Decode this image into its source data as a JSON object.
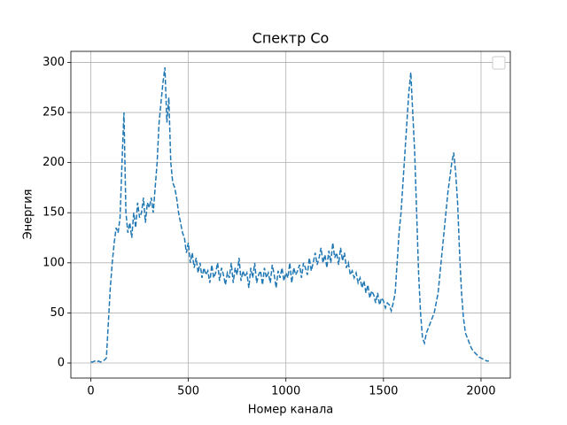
{
  "chart_data": {
    "type": "line",
    "title": "Спектр Co",
    "x_label": "Номер канала",
    "y_label": "Энергия",
    "x": [
      0,
      10,
      20,
      30,
      40,
      50,
      60,
      70,
      80,
      90,
      100,
      110,
      120,
      130,
      140,
      150,
      160,
      170,
      180,
      190,
      200,
      210,
      220,
      230,
      240,
      250,
      260,
      270,
      280,
      290,
      300,
      310,
      320,
      330,
      340,
      350,
      360,
      370,
      380,
      390,
      400,
      410,
      420,
      430,
      440,
      450,
      460,
      470,
      480,
      490,
      500,
      510,
      520,
      530,
      540,
      550,
      560,
      570,
      580,
      590,
      600,
      610,
      620,
      630,
      640,
      650,
      660,
      670,
      680,
      690,
      700,
      710,
      720,
      730,
      740,
      750,
      760,
      770,
      780,
      790,
      800,
      810,
      820,
      830,
      840,
      850,
      860,
      870,
      880,
      890,
      900,
      910,
      920,
      930,
      940,
      950,
      960,
      970,
      980,
      990,
      1000,
      1010,
      1020,
      1030,
      1040,
      1050,
      1060,
      1070,
      1080,
      1090,
      1100,
      1110,
      1120,
      1130,
      1140,
      1150,
      1160,
      1170,
      1180,
      1190,
      1200,
      1210,
      1220,
      1230,
      1240,
      1250,
      1260,
      1270,
      1280,
      1290,
      1300,
      1310,
      1320,
      1330,
      1340,
      1350,
      1360,
      1370,
      1380,
      1390,
      1400,
      1410,
      1420,
      1430,
      1440,
      1450,
      1460,
      1470,
      1480,
      1490,
      1500,
      1510,
      1520,
      1530,
      1540,
      1550,
      1560,
      1570,
      1580,
      1590,
      1600,
      1610,
      1620,
      1630,
      1640,
      1650,
      1660,
      1670,
      1680,
      1690,
      1700,
      1710,
      1720,
      1730,
      1740,
      1750,
      1760,
      1770,
      1780,
      1790,
      1800,
      1810,
      1820,
      1830,
      1840,
      1850,
      1860,
      1870,
      1880,
      1890,
      1900,
      1910,
      1920,
      1930,
      1940,
      1950,
      1960,
      1970,
      1980,
      1990,
      2000,
      2010,
      2020,
      2030,
      2040
    ],
    "values": [
      1,
      1,
      2,
      1,
      2,
      1,
      2,
      3,
      5,
      40,
      75,
      100,
      120,
      135,
      130,
      145,
      200,
      250,
      150,
      130,
      140,
      125,
      150,
      135,
      160,
      145,
      150,
      165,
      140,
      160,
      155,
      165,
      150,
      175,
      200,
      240,
      260,
      280,
      295,
      240,
      265,
      200,
      180,
      175,
      165,
      150,
      140,
      130,
      125,
      110,
      120,
      100,
      110,
      95,
      105,
      90,
      100,
      85,
      95,
      88,
      92,
      80,
      98,
      85,
      90,
      100,
      82,
      95,
      88,
      78,
      90,
      85,
      100,
      80,
      95,
      88,
      105,
      82,
      92,
      86,
      90,
      75,
      95,
      85,
      100,
      80,
      88,
      92,
      78,
      95,
      85,
      90,
      80,
      98,
      88,
      75,
      92,
      85,
      95,
      82,
      90,
      85,
      100,
      80,
      95,
      88,
      92,
      98,
      85,
      100,
      95,
      88,
      105,
      92,
      100,
      110,
      98,
      105,
      115,
      100,
      108,
      95,
      112,
      100,
      120,
      105,
      110,
      98,
      115,
      102,
      110,
      95,
      100,
      88,
      92,
      85,
      90,
      80,
      85,
      75,
      82,
      70,
      78,
      65,
      72,
      68,
      60,
      70,
      58,
      65,
      62,
      55,
      60,
      58,
      52,
      60,
      70,
      100,
      130,
      150,
      180,
      210,
      240,
      270,
      290,
      250,
      210,
      150,
      90,
      50,
      25,
      20,
      30,
      35,
      40,
      45,
      50,
      60,
      70,
      90,
      110,
      130,
      150,
      170,
      185,
      200,
      210,
      190,
      160,
      110,
      70,
      45,
      30,
      25,
      20,
      15,
      12,
      10,
      8,
      6,
      5,
      4,
      3,
      2,
      2
    ],
    "color": "#1f77b4",
    "dashed": true,
    "xlim": [
      -102,
      2150
    ],
    "ylim": [
      -15,
      311
    ],
    "xticks": [
      0,
      500,
      1000,
      1500,
      2000
    ],
    "yticks": [
      0,
      50,
      100,
      150,
      200,
      250,
      300
    ],
    "grid": true
  }
}
